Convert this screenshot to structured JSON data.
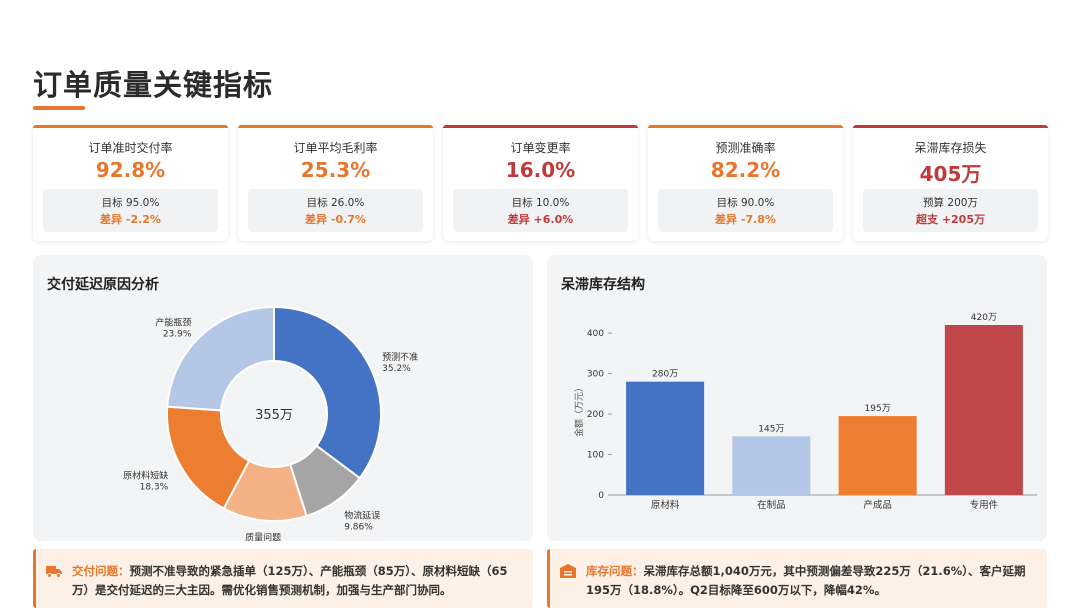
{
  "page": {
    "title": "订单质量关键指标"
  },
  "kpis": [
    {
      "label": "订单准时交付率",
      "value": "92.8%",
      "target": "目标 95.0%",
      "diff": "差异 -2.2%",
      "accent": "#e8772e",
      "diff_color": "#e8772e"
    },
    {
      "label": "订单平均毛利率",
      "value": "25.3%",
      "target": "目标 26.0%",
      "diff": "差异 -0.7%",
      "accent": "#e8772e",
      "diff_color": "#e8772e"
    },
    {
      "label": "订单变更率",
      "value": "16.0%",
      "target": "目标 10.0%",
      "diff": "差异 +6.0%",
      "accent": "#c0393b",
      "diff_color": "#c0393b"
    },
    {
      "label": "预测准确率",
      "value": "82.2%",
      "target": "目标 90.0%",
      "diff": "差异 -7.8%",
      "accent": "#e8772e",
      "diff_color": "#e8772e"
    },
    {
      "label": "呆滞库存损失",
      "value": "405万",
      "target": "预算 200万",
      "diff": "超支 +205万",
      "accent": "#c0393b",
      "diff_color": "#c0393b"
    }
  ],
  "panels": {
    "delay": {
      "title": "交付延迟原因分析"
    },
    "inventory": {
      "title": "呆滞库存结构"
    }
  },
  "chart_data": [
    {
      "type": "pie",
      "title": "交付延迟原因分析",
      "center_label": "355万",
      "categories": [
        "预测不准",
        "物流延误",
        "质量问题",
        "原材料短缺",
        "产能瓶颈"
      ],
      "values": [
        35.2,
        9.86,
        12.7,
        18.3,
        23.9
      ],
      "value_labels": [
        "35.2%",
        "9.86%",
        "",
        "18.3%",
        "23.9%"
      ],
      "colors": [
        "#4472c4",
        "#a5a5a5",
        "#f4b183",
        "#ed7d31",
        "#b4c7e7"
      ]
    },
    {
      "type": "bar",
      "title": "呆滞库存结构",
      "categories": [
        "原材料",
        "在制品",
        "产成品",
        "专用件"
      ],
      "values": [
        280,
        145,
        195,
        420
      ],
      "value_labels": [
        "280万",
        "145万",
        "195万",
        "420万"
      ],
      "colors": [
        "#4472c4",
        "#b4c7e7",
        "#ed7d31",
        "#c0474a"
      ],
      "ylabel": "金额（万元）",
      "ylim": [
        0,
        420
      ],
      "yticks": [
        0,
        100,
        200,
        300,
        400
      ]
    }
  ],
  "notes": [
    {
      "label": "交付问题：",
      "text": "预测不准导致的紧急插单（125万）、产能瓶颈（85万）、原材料短缺（65万）是交付延迟的三大主因。需优化销售预测机制，加强与生产部门协同。",
      "icon": "truck-icon"
    },
    {
      "label": "库存问题：",
      "text": "呆滞库存总额1,040万元，其中预测偏差导致225万（21.6%）、客户延期195万（18.8%）。Q2目标降至600万以下，降幅42%。",
      "icon": "warehouse-icon"
    }
  ]
}
